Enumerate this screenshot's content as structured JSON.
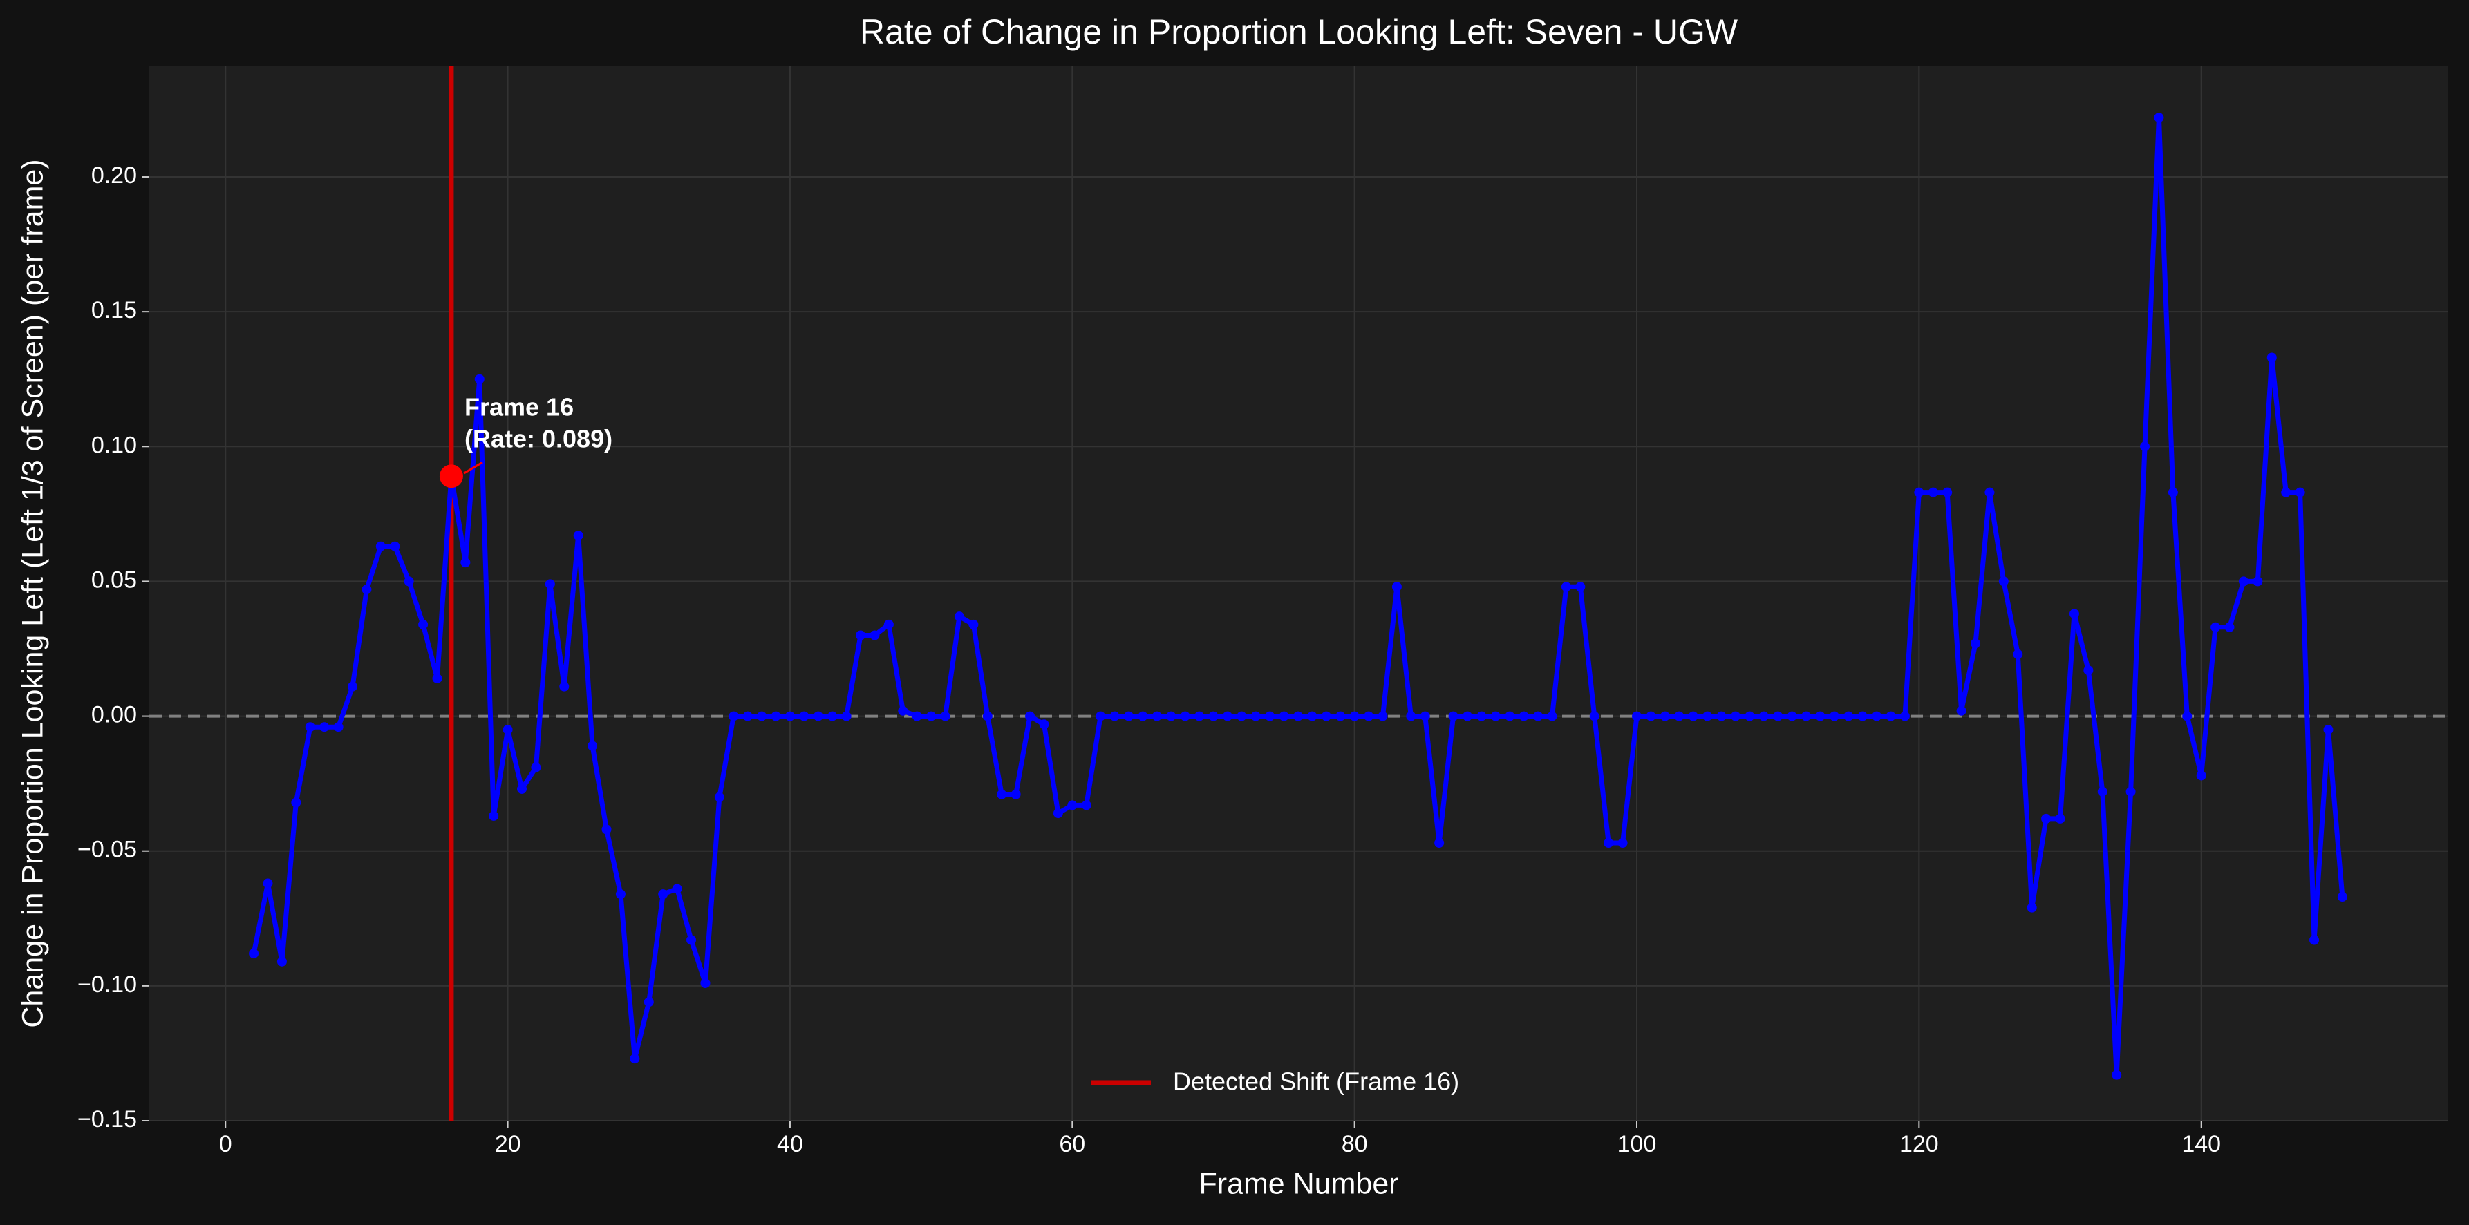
{
  "chart_data": {
    "type": "line",
    "title": "Rate of Change in Proportion Looking Left: Seven - UGW",
    "xlabel": "Frame Number",
    "ylabel": "Change in Proportion Looking Left (Left 1/3 of Screen) (per frame)",
    "x": [
      2,
      3,
      4,
      5,
      6,
      7,
      8,
      9,
      10,
      11,
      12,
      13,
      14,
      15,
      16,
      17,
      18,
      19,
      20,
      21,
      22,
      23,
      24,
      25,
      26,
      27,
      28,
      29,
      30,
      31,
      32,
      33,
      34,
      35,
      36,
      37,
      38,
      39,
      40,
      41,
      42,
      43,
      44,
      45,
      46,
      47,
      48,
      49,
      50,
      51,
      52,
      53,
      54,
      55,
      56,
      57,
      58,
      59,
      60,
      61,
      62,
      63,
      64,
      65,
      66,
      67,
      68,
      69,
      70,
      71,
      72,
      73,
      74,
      75,
      76,
      77,
      78,
      79,
      80,
      81,
      82,
      83,
      84,
      85,
      86,
      87,
      88,
      89,
      90,
      91,
      92,
      93,
      94,
      95,
      96,
      97,
      98,
      99,
      100,
      101,
      102,
      103,
      104,
      105,
      106,
      107,
      108,
      109,
      110,
      111,
      112,
      113,
      114,
      115,
      116,
      117,
      118,
      119,
      120,
      121,
      122,
      123,
      124,
      125,
      126,
      127,
      128,
      129,
      130,
      131,
      132,
      133,
      134,
      135,
      136,
      137,
      138,
      139,
      140,
      141,
      142,
      143,
      144,
      145,
      146,
      147,
      148,
      149,
      150
    ],
    "values": [
      -0.088,
      -0.062,
      -0.091,
      -0.032,
      -0.004,
      -0.004,
      -0.004,
      0.011,
      0.047,
      0.063,
      0.063,
      0.05,
      0.034,
      0.014,
      0.089,
      0.057,
      0.125,
      -0.037,
      -0.005,
      -0.027,
      -0.019,
      0.049,
      0.011,
      0.067,
      -0.011,
      -0.042,
      -0.066,
      -0.127,
      -0.106,
      -0.066,
      -0.064,
      -0.083,
      -0.099,
      -0.03,
      0,
      0,
      0,
      0,
      0,
      0,
      0,
      0,
      0,
      0.03,
      0.03,
      0.034,
      0.002,
      0,
      0,
      0,
      0.037,
      0.034,
      0,
      -0.029,
      -0.029,
      0,
      -0.003,
      -0.036,
      -0.033,
      -0.033,
      0,
      0,
      0,
      0,
      0,
      0,
      0,
      0,
      0,
      0,
      0,
      0,
      0,
      0,
      0,
      0,
      0,
      0,
      0,
      0,
      0,
      0.048,
      0,
      0,
      -0.047,
      0,
      0,
      0,
      0,
      0,
      0,
      0,
      0,
      0.048,
      0.048,
      0,
      -0.047,
      -0.047,
      0,
      0,
      0,
      0,
      0,
      0,
      0,
      0,
      0,
      0,
      0,
      0,
      0,
      0,
      0,
      0,
      0,
      0,
      0,
      0,
      0.083,
      0.083,
      0.083,
      0.002,
      0.027,
      0.083,
      0.05,
      0.023,
      -0.071,
      -0.038,
      -0.038,
      0.038,
      0.017,
      -0.028,
      -0.133,
      -0.028,
      0.1,
      0.222,
      0.083,
      0,
      -0.022,
      0.033,
      0.033,
      0.05,
      0.05,
      0.133,
      0.083,
      0.083,
      -0.083,
      -0.005,
      -0.067
    ],
    "color": "#0000ff",
    "xlim": [
      -5.4,
      157.5
    ],
    "ylim": [
      -0.15,
      0.241
    ],
    "xticks": [
      0,
      20,
      40,
      60,
      80,
      100,
      120,
      140
    ],
    "yticks": [
      {
        "value": -0.15,
        "label": "−0.15"
      },
      {
        "value": -0.1,
        "label": "−0.10"
      },
      {
        "value": -0.05,
        "label": "−0.05"
      },
      {
        "value": 0,
        "label": "0.00"
      },
      {
        "value": 0.05,
        "label": "0.05"
      },
      {
        "value": 0.1,
        "label": "0.10"
      },
      {
        "value": 0.15,
        "label": "0.15"
      },
      {
        "value": 0.2,
        "label": "0.20"
      }
    ],
    "grid": true,
    "hline": {
      "y": 0,
      "color": "#808080"
    },
    "vline": {
      "x": 16,
      "label": "Detected Shift (Frame 16)",
      "color": "#cc0000"
    },
    "highlight": {
      "x": 16,
      "y": 0.089,
      "color": "#ff0000",
      "lines": [
        "Frame 16",
        "(Rate: 0.089)"
      ]
    },
    "legend": "lower center"
  }
}
